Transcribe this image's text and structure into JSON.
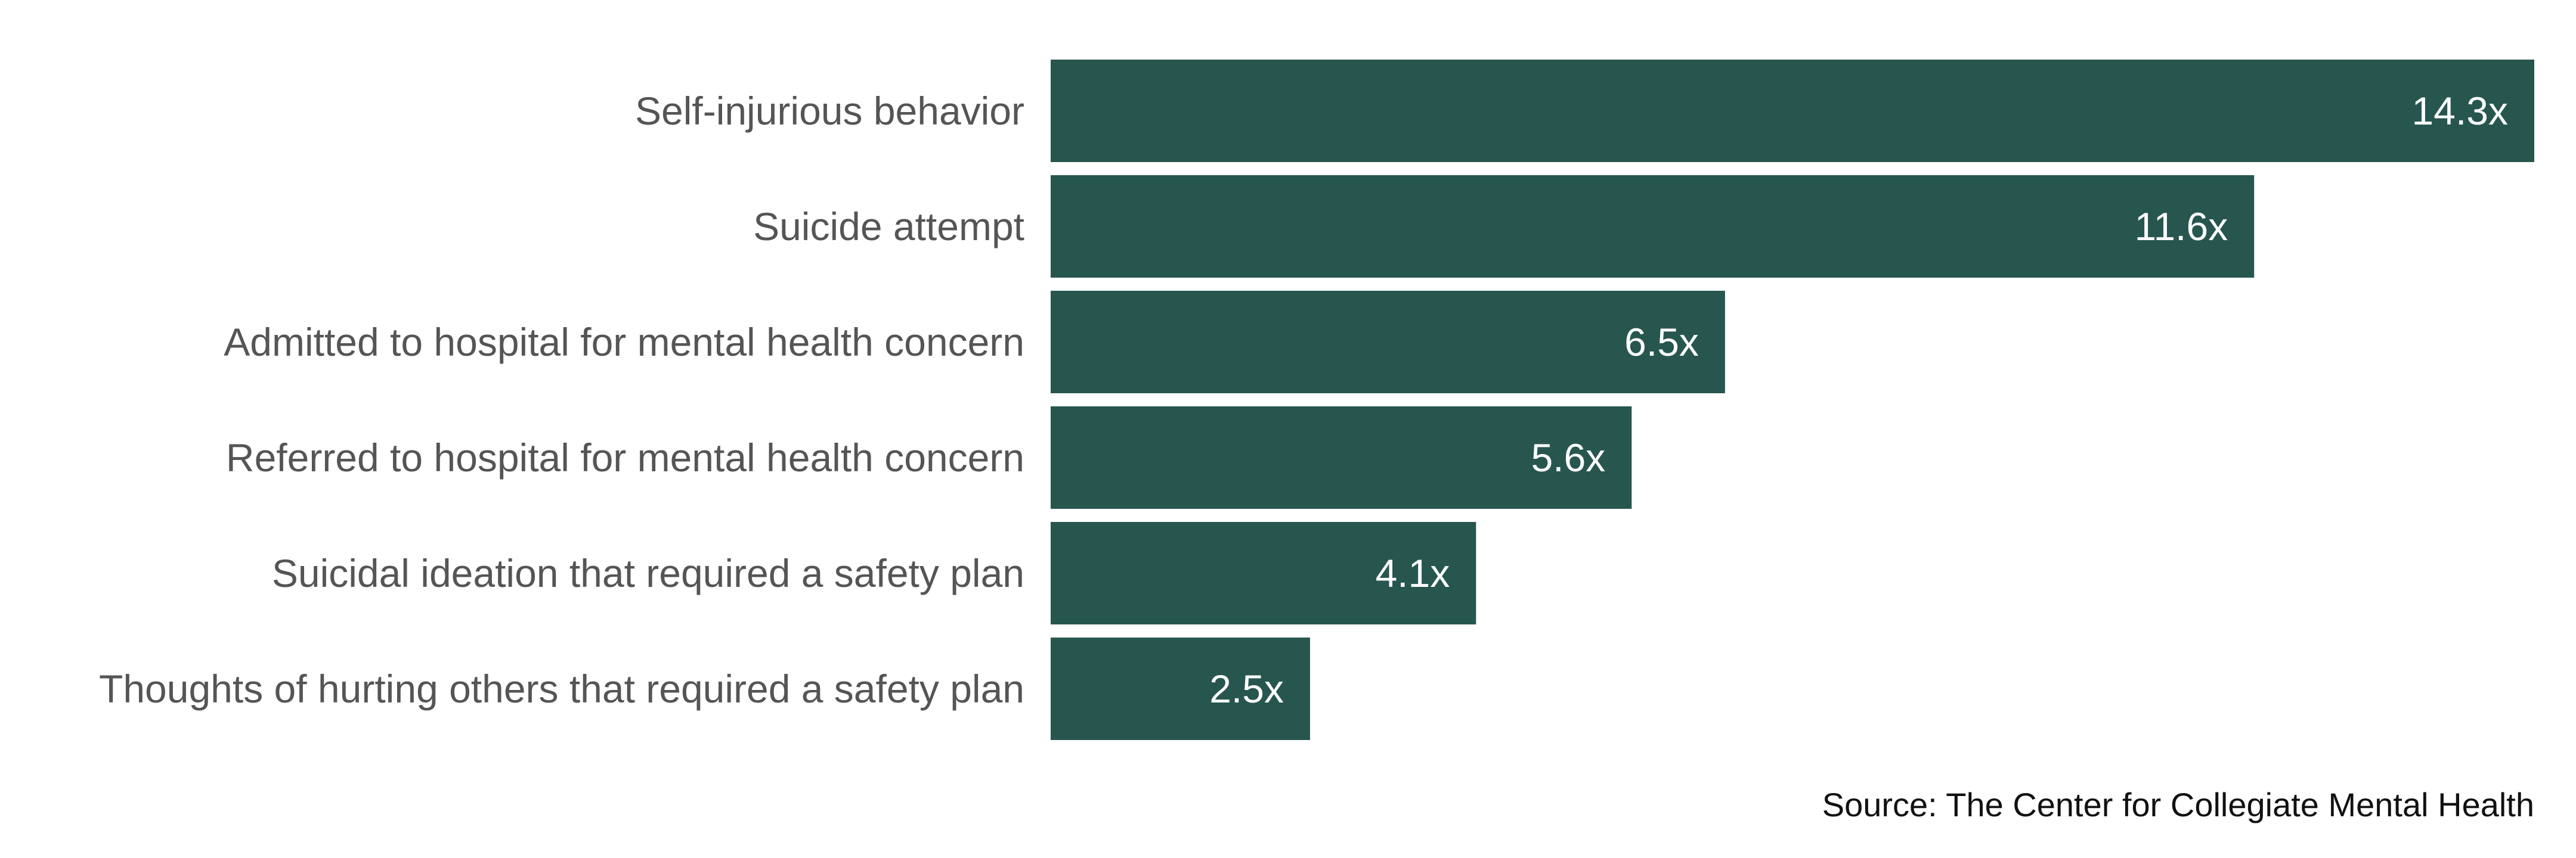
{
  "chart_data": {
    "type": "bar",
    "orientation": "horizontal",
    "categories": [
      "Self-injurious behavior",
      "Suicide attempt",
      "Admitted to hospital for mental health concern",
      "Referred to hospital for mental health concern",
      "Suicidal ideation that required a safety plan",
      "Thoughts of hurting others that required a safety plan"
    ],
    "values": [
      14.3,
      11.6,
      6.5,
      5.6,
      4.1,
      2.5
    ],
    "value_labels": [
      "14.3x",
      "11.6x",
      "6.5x",
      "5.6x",
      "4.1x",
      "2.5x"
    ],
    "xlim": [
      0,
      14.3
    ],
    "bar_color": "#27564f",
    "grid": false,
    "legend": "none",
    "source": "Source: The Center for Collegiate Mental Health"
  }
}
